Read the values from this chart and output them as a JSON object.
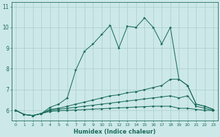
{
  "xlabel": "Humidex (Indice chaleur)",
  "bg_color": "#cce8e8",
  "grid_color": "#aacccc",
  "line_color": "#1a6b5a",
  "xmin": -0.5,
  "xmax": 23.5,
  "ymin": 5.5,
  "ymax": 11.2,
  "yticks": [
    6,
    7,
    8,
    9,
    10,
    11
  ],
  "xticks": [
    0,
    1,
    2,
    3,
    4,
    5,
    6,
    7,
    8,
    9,
    10,
    11,
    12,
    13,
    14,
    15,
    16,
    17,
    18,
    19,
    20,
    21,
    22,
    23
  ],
  "series": {
    "main": {
      "x": [
        0,
        1,
        2,
        3,
        4,
        5,
        6,
        7,
        8,
        9,
        10,
        11,
        12,
        13,
        14,
        15,
        16,
        17,
        18,
        19,
        20,
        21,
        22,
        23
      ],
      "y": [
        6.0,
        5.8,
        5.75,
        5.85,
        6.15,
        6.3,
        6.6,
        7.95,
        8.85,
        9.2,
        9.65,
        10.1,
        9.0,
        10.05,
        10.0,
        10.45,
        10.0,
        9.2,
        10.0,
        7.5,
        7.2,
        6.3,
        6.2,
        6.05
      ]
    },
    "line2": {
      "x": [
        0,
        1,
        2,
        3,
        4,
        5,
        6,
        7,
        8,
        9,
        10,
        11,
        12,
        13,
        14,
        15,
        16,
        17,
        18,
        19,
        20,
        21,
        22,
        23
      ],
      "y": [
        6.0,
        5.8,
        5.75,
        5.85,
        6.05,
        6.1,
        6.2,
        6.3,
        6.4,
        6.5,
        6.6,
        6.7,
        6.75,
        6.85,
        6.9,
        7.0,
        7.1,
        7.2,
        7.5,
        7.5,
        7.2,
        6.3,
        6.2,
        6.05
      ]
    },
    "line3": {
      "x": [
        0,
        1,
        2,
        3,
        4,
        5,
        6,
        7,
        8,
        9,
        10,
        11,
        12,
        13,
        14,
        15,
        16,
        17,
        18,
        19,
        20,
        21,
        22,
        23
      ],
      "y": [
        6.0,
        5.8,
        5.75,
        5.85,
        6.0,
        6.05,
        6.1,
        6.15,
        6.2,
        6.25,
        6.3,
        6.35,
        6.4,
        6.45,
        6.5,
        6.55,
        6.6,
        6.65,
        6.7,
        6.6,
        6.7,
        6.2,
        6.1,
        6.0
      ]
    },
    "line4": {
      "x": [
        0,
        1,
        2,
        3,
        4,
        5,
        6,
        7,
        8,
        9,
        10,
        11,
        12,
        13,
        14,
        15,
        16,
        17,
        18,
        19,
        20,
        21,
        22,
        23
      ],
      "y": [
        6.0,
        5.8,
        5.75,
        5.85,
        5.95,
        5.98,
        6.0,
        6.02,
        6.04,
        6.06,
        6.08,
        6.1,
        6.12,
        6.14,
        6.16,
        6.18,
        6.2,
        6.2,
        6.2,
        6.1,
        6.1,
        6.05,
        6.0,
        6.0
      ]
    }
  }
}
